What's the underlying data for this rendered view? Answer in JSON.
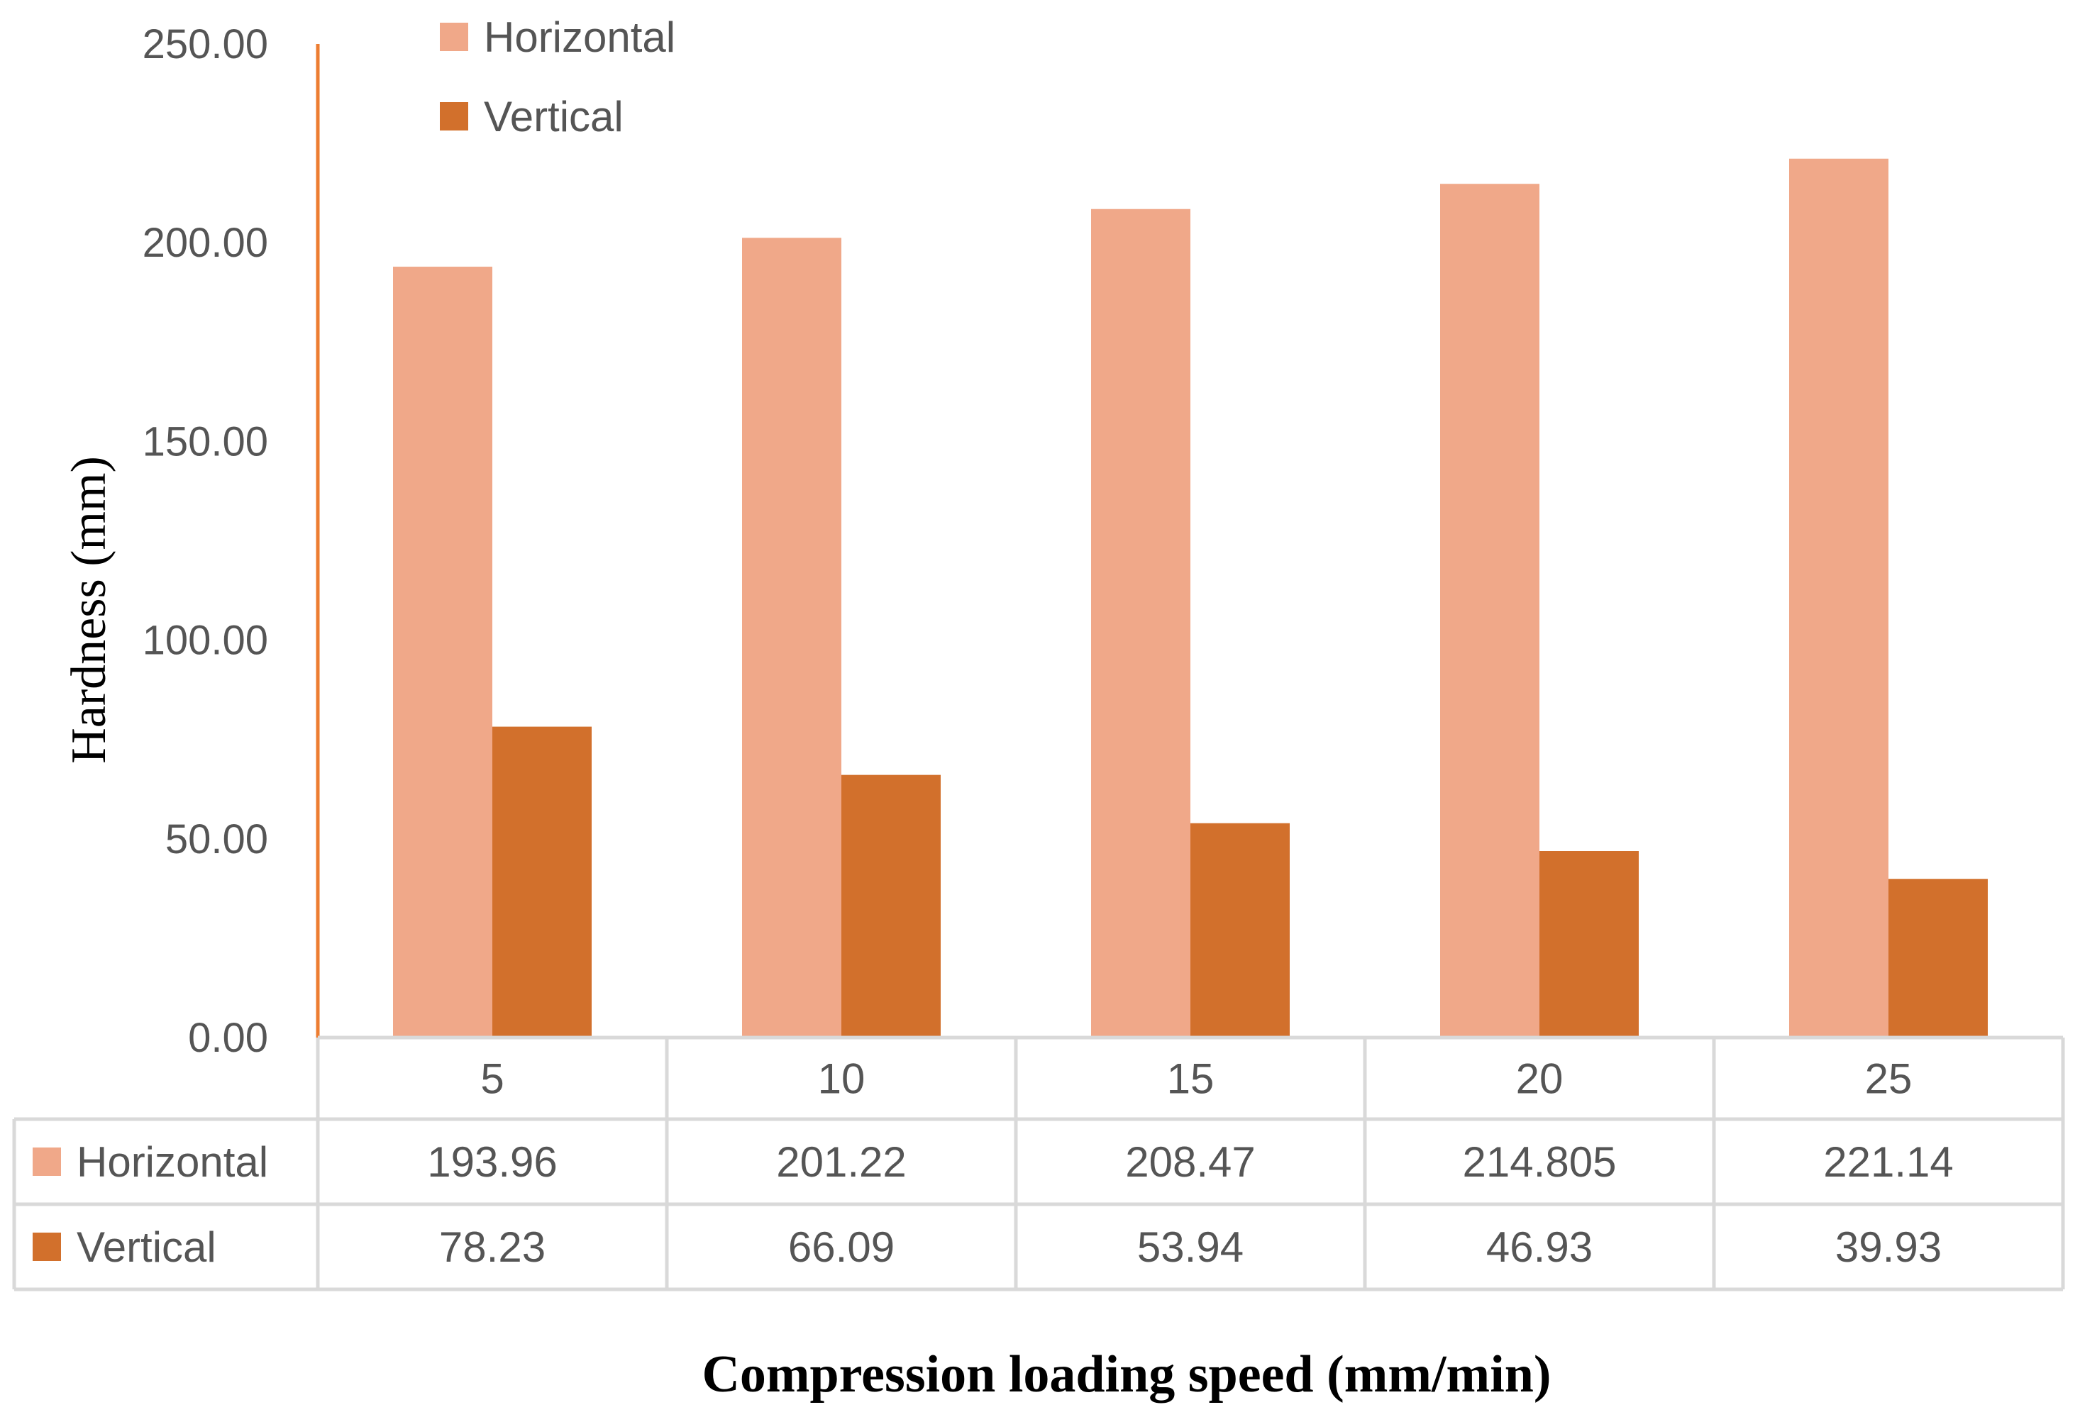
{
  "colors": {
    "horizontal": "#F0A889",
    "vertical": "#D2702C",
    "axis": "#ED7D31",
    "grid": "#D9D9D9"
  },
  "chart_data": {
    "type": "bar",
    "categories": [
      "5",
      "10",
      "15",
      "20",
      "25"
    ],
    "series": [
      {
        "name": "Horizontal",
        "values": [
          193.96,
          201.22,
          208.47,
          214.805,
          221.14
        ]
      },
      {
        "name": "Vertical",
        "values": [
          78.23,
          66.09,
          53.94,
          46.93,
          39.93
        ]
      }
    ],
    "value_labels": [
      [
        "193.96",
        "201.22",
        "208.47",
        "214.805",
        "221.14"
      ],
      [
        "78.23",
        "66.09",
        "53.94",
        "46.93",
        "39.93"
      ]
    ],
    "ylim": [
      0,
      250
    ],
    "yticks": [
      "0.00",
      "50.00",
      "100.00",
      "150.00",
      "200.00",
      "250.00"
    ],
    "ylabel": "Hardness (mm)",
    "xlabel": "Compression loading speed (mm/min)",
    "legend": [
      "Horizontal",
      "Vertical"
    ],
    "legend_position": "top-left",
    "data_table": true
  }
}
